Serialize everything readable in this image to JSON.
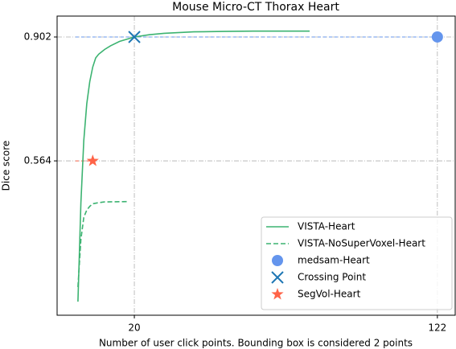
{
  "chart_data": {
    "type": "line",
    "title": "Mouse Micro-CT Thorax Heart",
    "xlabel": "Number of user click points. Bounding box is considered 2 points",
    "ylabel": "Dice score",
    "xlim": [
      -6,
      128
    ],
    "ylim": [
      0.143,
      0.959
    ],
    "xticks": [
      20,
      122
    ],
    "yticks": [
      0.564,
      0.902
    ],
    "grid": true,
    "legend": "lower right",
    "series": [
      {
        "name": "VISTA-Heart",
        "color": "#3cb371",
        "linestyle": "solid",
        "x": [
          1,
          2,
          3,
          4,
          5,
          6,
          7,
          8,
          10,
          12,
          15,
          20,
          25,
          30,
          40,
          50,
          60,
          79
        ],
        "values": [
          0.18,
          0.45,
          0.62,
          0.72,
          0.78,
          0.82,
          0.845,
          0.855,
          0.868,
          0.878,
          0.89,
          0.902,
          0.908,
          0.912,
          0.916,
          0.917,
          0.918,
          0.918
        ]
      },
      {
        "name": "VISTA-NoSuperVoxel-Heart",
        "color": "#3cb371",
        "linestyle": "dashed",
        "x": [
          1,
          2,
          3,
          4,
          5,
          6,
          8,
          10,
          18
        ],
        "values": [
          0.22,
          0.35,
          0.41,
          0.43,
          0.44,
          0.447,
          0.45,
          0.452,
          0.453
        ]
      },
      {
        "name": "medsam-Heart",
        "color": "#6495ed",
        "marker": "o",
        "refline": "#6495ed",
        "x": [
          122
        ],
        "values": [
          0.902
        ]
      },
      {
        "name": "Crossing Point",
        "color": "#1f77b4",
        "marker": "x",
        "x": [
          20
        ],
        "values": [
          0.902
        ]
      },
      {
        "name": "SegVol-Heart",
        "color": "#ff6347",
        "marker": "*",
        "refline": "#ff6347",
        "x": [
          6
        ],
        "values": [
          0.564
        ]
      }
    ]
  }
}
